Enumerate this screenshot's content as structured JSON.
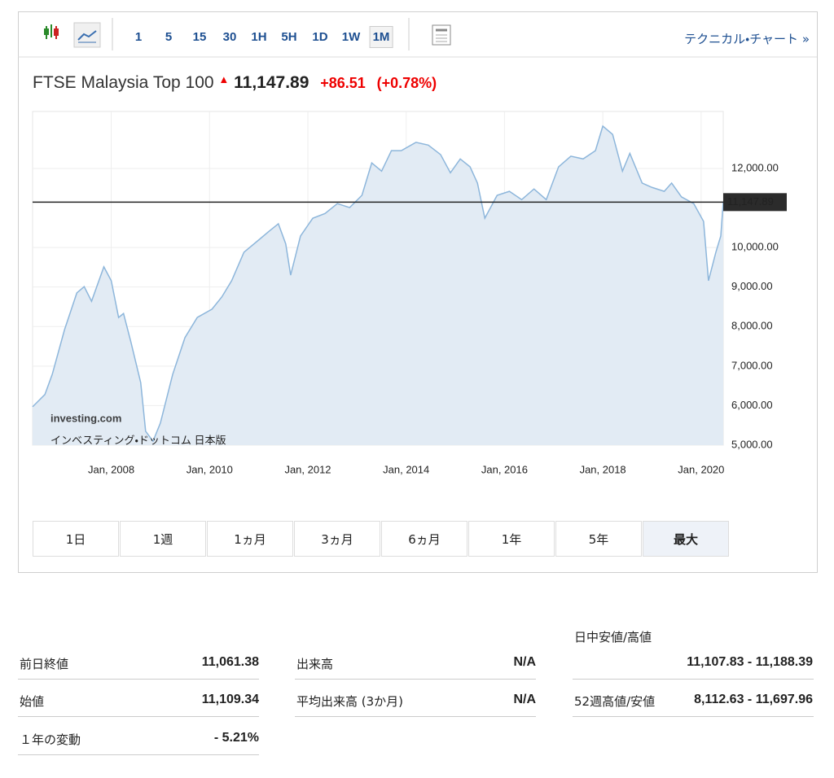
{
  "toolbar": {
    "intervals": [
      {
        "label": "1"
      },
      {
        "label": "5"
      },
      {
        "label": "15"
      },
      {
        "label": "30"
      },
      {
        "label": "1H"
      },
      {
        "label": "5H"
      },
      {
        "label": "1D"
      },
      {
        "label": "1W"
      },
      {
        "label": "1M",
        "selected": true
      }
    ],
    "link": "テクニカル・チャート »"
  },
  "header": {
    "name": "FTSE Malaysia Top 100",
    "change": "+86.51",
    "change_percent": "(+0.78%)"
  },
  "chart_data": {
    "type": "area",
    "watermark": "investing.com",
    "watermark_sub": "インベスティング・ドットコム 日本版",
    "last_price": {
      "value": 11147.89,
      "label": "11,147.89"
    },
    "xlim": [
      2006.4,
      2020.45
    ],
    "ylim": [
      5000,
      13440
    ],
    "xticks": [
      {
        "value": 2008,
        "label": "Jan, 2008"
      },
      {
        "value": 2010,
        "label": "Jan, 2010"
      },
      {
        "value": 2012,
        "label": "Jan, 2012"
      },
      {
        "value": 2014,
        "label": "Jan, 2014"
      },
      {
        "value": 2016,
        "label": "Jan, 2016"
      },
      {
        "value": 2018,
        "label": "Jan, 2018"
      },
      {
        "value": 2020,
        "label": "Jan, 2020"
      }
    ],
    "yticks": [
      {
        "value": 5000,
        "label": "5,000.00"
      },
      {
        "value": 6000,
        "label": "6,000.00"
      },
      {
        "value": 7000,
        "label": "7,000.00"
      },
      {
        "value": 8000,
        "label": "8,000.00"
      },
      {
        "value": 9000,
        "label": "9,000.00"
      },
      {
        "value": 10000,
        "label": "10,000.00"
      },
      {
        "value": 12000,
        "label": "12,000.00"
      }
    ],
    "grid": true,
    "series": [
      {
        "color": "#8db6db",
        "fill": "#e2ebf4",
        "x": [
          2006.4,
          2006.65,
          2006.8,
          2007.05,
          2007.3,
          2007.45,
          2007.6,
          2007.85,
          2008.0,
          2008.15,
          2008.25,
          2008.4,
          2008.6,
          2008.7,
          2008.85,
          2009.0,
          2009.25,
          2009.5,
          2009.75,
          2010.05,
          2010.25,
          2010.45,
          2010.7,
          2011.0,
          2011.2,
          2011.4,
          2011.55,
          2011.65,
          2011.85,
          2012.1,
          2012.35,
          2012.6,
          2012.85,
          2013.1,
          2013.3,
          2013.5,
          2013.7,
          2013.9,
          2014.2,
          2014.45,
          2014.7,
          2014.9,
          2015.1,
          2015.3,
          2015.45,
          2015.6,
          2015.85,
          2016.1,
          2016.35,
          2016.6,
          2016.85,
          2017.1,
          2017.35,
          2017.6,
          2017.85,
          2018.0,
          2018.2,
          2018.4,
          2018.55,
          2018.8,
          2019.0,
          2019.25,
          2019.4,
          2019.6,
          2019.85,
          2020.05,
          2020.15,
          2020.3,
          2020.4,
          2020.45
        ],
        "values": [
          5970,
          6280,
          6790,
          7920,
          8850,
          9010,
          8640,
          9510,
          9160,
          8230,
          8330,
          7610,
          6580,
          5350,
          5100,
          5560,
          6790,
          7720,
          8230,
          8440,
          8750,
          9160,
          9880,
          10190,
          10400,
          10600,
          10090,
          9300,
          10290,
          10740,
          10860,
          11110,
          11010,
          11320,
          12140,
          11930,
          12450,
          12450,
          12660,
          12590,
          12350,
          11890,
          12240,
          12040,
          11630,
          10740,
          11320,
          11420,
          11210,
          11480,
          11210,
          12040,
          12310,
          12240,
          12450,
          13070,
          12860,
          11930,
          12380,
          11630,
          11520,
          11420,
          11630,
          11280,
          11110,
          10660,
          9160,
          9880,
          10290,
          11150
        ]
      }
    ]
  },
  "periods": [
    {
      "label": "1日"
    },
    {
      "label": "1週"
    },
    {
      "label": "1ヵ月"
    },
    {
      "label": "3ヵ月"
    },
    {
      "label": "6ヵ月"
    },
    {
      "label": "1年"
    },
    {
      "label": "5年"
    },
    {
      "label": "最大",
      "selected": true
    }
  ],
  "stats": {
    "col1": [
      [
        "前日終値",
        "11,061.38"
      ],
      [
        "始値",
        "11,109.34"
      ],
      [
        "１年の変動",
        "- 5.21%"
      ]
    ],
    "col2": [
      [
        "出来高",
        "N/A"
      ],
      [
        "平均出来高 (3か月)",
        "N/A"
      ]
    ],
    "day_range_label": "日中安値/高値",
    "day_range": "11,107.83 - 11,188.39",
    "week52_label": "52週高値/安値",
    "week52": "8,112.63 - 11,697.96"
  }
}
